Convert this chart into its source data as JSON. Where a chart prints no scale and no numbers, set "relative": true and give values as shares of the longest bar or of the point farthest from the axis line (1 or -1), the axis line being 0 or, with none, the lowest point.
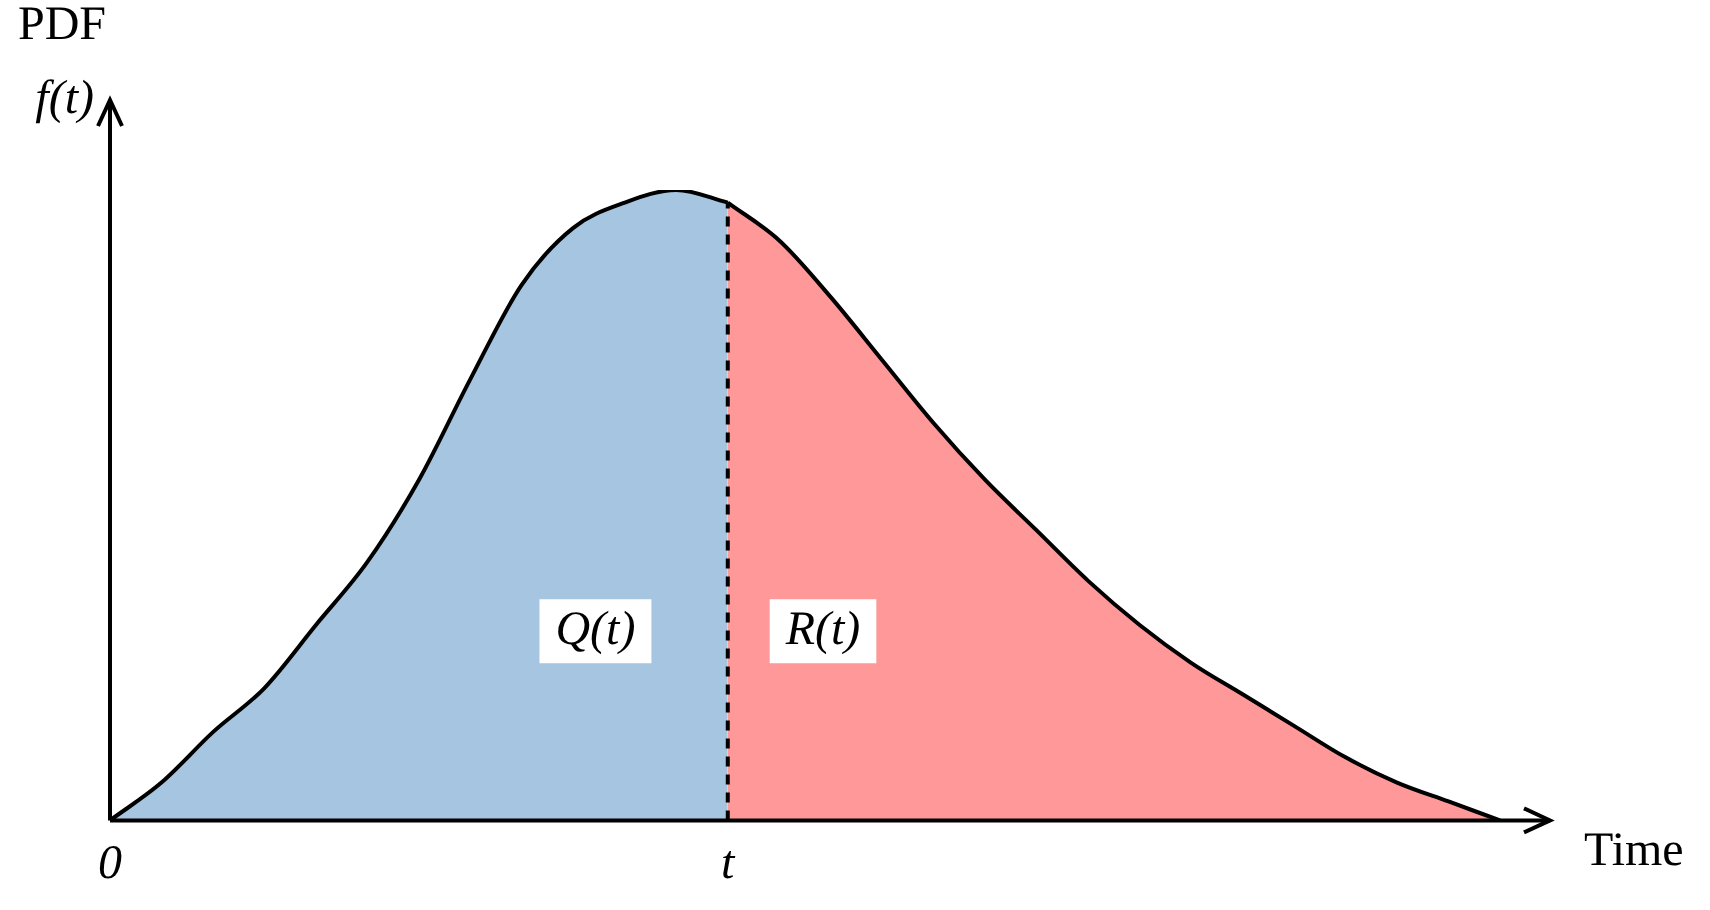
{
  "chart_data": {
    "type": "area",
    "relative": true,
    "title": "PDF",
    "ylabel": "f(t)",
    "xlabel": "Time",
    "categories": [
      "0",
      null,
      null,
      null,
      null,
      null,
      null,
      null,
      null,
      null,
      null,
      null,
      "t",
      null,
      null,
      null,
      null,
      null,
      null,
      null,
      null,
      null,
      null,
      null,
      null,
      null,
      null,
      null
    ],
    "series": [
      {
        "name": "Q(t)",
        "color": "#1f6fb5",
        "values": [
          0,
          0.06,
          0.14,
          0.21,
          0.31,
          0.41,
          0.54,
          0.7,
          0.85,
          0.94,
          0.98,
          1,
          0.98,
          null,
          null,
          null,
          null,
          null,
          null,
          null,
          null,
          null,
          null,
          null,
          null,
          null,
          null,
          null
        ]
      },
      {
        "name": "R(t)",
        "color": "#ff0000",
        "values": [
          null,
          null,
          null,
          null,
          null,
          null,
          null,
          null,
          null,
          null,
          null,
          null,
          0.98,
          0.92,
          0.83,
          0.73,
          0.63,
          0.54,
          0.46,
          0.38,
          0.31,
          0.25,
          0.2,
          0.15,
          0.1,
          0.06,
          0.03,
          0
        ]
      }
    ],
    "ref_lines": [
      {
        "axis": "x",
        "value": "t",
        "color": "#000000",
        "line_style": "dashed"
      }
    ],
    "grid": false,
    "legend": false,
    "marker": "none",
    "line_style": "solid"
  }
}
